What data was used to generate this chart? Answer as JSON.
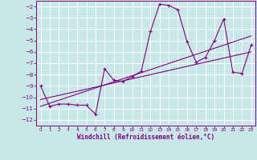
{
  "xlabel": "Windchill (Refroidissement éolien,°C)",
  "bg_color": "#c8e8e8",
  "grid_color": "#ffffff",
  "line_color": "#800080",
  "xlim": [
    -0.5,
    23.5
  ],
  "ylim": [
    -12.5,
    -1.5
  ],
  "xticks": [
    0,
    1,
    2,
    3,
    4,
    5,
    6,
    7,
    8,
    9,
    10,
    11,
    12,
    13,
    14,
    15,
    16,
    17,
    18,
    19,
    20,
    21,
    22,
    23
  ],
  "yticks": [
    -2,
    -3,
    -4,
    -5,
    -6,
    -7,
    -8,
    -9,
    -10,
    -11,
    -12
  ],
  "series": [
    [
      0,
      -9.0
    ],
    [
      1,
      -10.8
    ],
    [
      2,
      -10.6
    ],
    [
      3,
      -10.6
    ],
    [
      4,
      -10.7
    ],
    [
      5,
      -10.7
    ],
    [
      6,
      -11.5
    ],
    [
      7,
      -7.5
    ],
    [
      8,
      -8.5
    ],
    [
      9,
      -8.6
    ],
    [
      10,
      -8.2
    ],
    [
      11,
      -7.7
    ],
    [
      12,
      -4.2
    ],
    [
      13,
      -1.8
    ],
    [
      14,
      -1.9
    ],
    [
      15,
      -2.3
    ],
    [
      16,
      -5.1
    ],
    [
      17,
      -6.9
    ],
    [
      18,
      -6.5
    ],
    [
      19,
      -5.0
    ],
    [
      20,
      -3.1
    ],
    [
      21,
      -7.8
    ],
    [
      22,
      -7.9
    ],
    [
      23,
      -5.4
    ]
  ],
  "regression_line1": [
    [
      0,
      -10.8
    ],
    [
      23,
      -4.6
    ]
  ],
  "regression_line2": [
    [
      0,
      -10.2
    ],
    [
      23,
      -6.0
    ]
  ]
}
